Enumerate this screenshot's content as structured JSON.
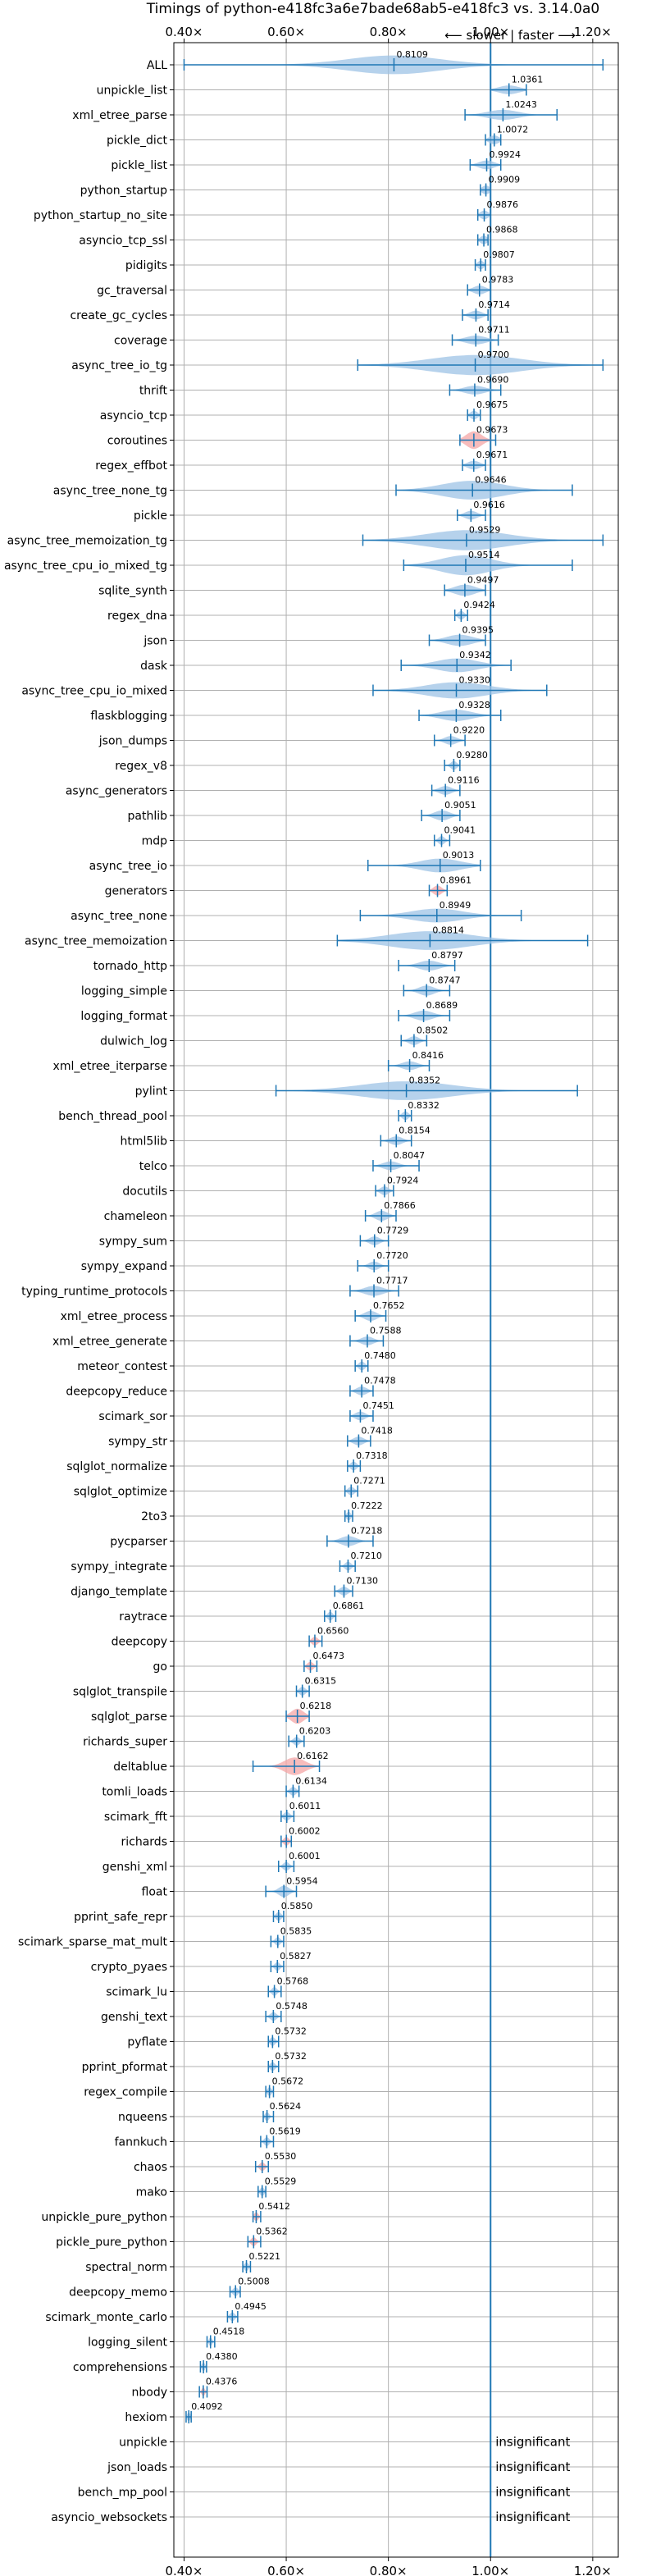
{
  "chart_data": {
    "type": "violin",
    "title": "Timings of python-e418fc3a6e7bade68ab5-e418fc3 vs. 3.14.0a0",
    "xlim": [
      0.38,
      1.25
    ],
    "x_ticks": [
      {
        "value": 0.4,
        "label": "0.40×"
      },
      {
        "value": 0.6,
        "label": "0.60×"
      },
      {
        "value": 0.8,
        "label": "0.80×"
      },
      {
        "value": 1.0,
        "label": "1.00×"
      },
      {
        "value": 1.2,
        "label": "1.20×"
      }
    ],
    "direction_label": "⟵ slower | faster ⟶",
    "reference_line": 1.0,
    "grid": true,
    "colors": {
      "violin_normal": "#9dc3e6",
      "violin_highlight": "#f4a6a6",
      "line": "#1f77b4",
      "grid": "#b0b0b0"
    },
    "benchmarks": [
      {
        "name": "ALL",
        "mean": 0.8109,
        "min": 0.4,
        "max": 1.22,
        "spread": 0.09,
        "width": 0.75
      },
      {
        "name": "unpickle_list",
        "mean": 1.0361,
        "min": 1.0,
        "max": 1.07,
        "spread": 0.02,
        "width": 0.35
      },
      {
        "name": "xml_etree_parse",
        "mean": 1.0243,
        "min": 0.95,
        "max": 1.13,
        "spread": 0.03,
        "width": 0.4
      },
      {
        "name": "pickle_dict",
        "mean": 1.0072,
        "min": 0.99,
        "max": 1.02,
        "spread": 0.01,
        "width": 0.35
      },
      {
        "name": "pickle_list",
        "mean": 0.9924,
        "min": 0.96,
        "max": 1.02,
        "spread": 0.015,
        "width": 0.35
      },
      {
        "name": "python_startup",
        "mean": 0.9909,
        "min": 0.98,
        "max": 1.0,
        "spread": 0.008,
        "width": 0.35
      },
      {
        "name": "python_startup_no_site",
        "mean": 0.9876,
        "min": 0.975,
        "max": 1.0,
        "spread": 0.008,
        "width": 0.35
      },
      {
        "name": "asyncio_tcp_ssl",
        "mean": 0.9868,
        "min": 0.975,
        "max": 0.995,
        "spread": 0.007,
        "width": 0.35
      },
      {
        "name": "pidigits",
        "mean": 0.9807,
        "min": 0.97,
        "max": 0.99,
        "spread": 0.006,
        "width": 0.35
      },
      {
        "name": "gc_traversal",
        "mean": 0.9783,
        "min": 0.955,
        "max": 1.0,
        "spread": 0.012,
        "width": 0.35
      },
      {
        "name": "create_gc_cycles",
        "mean": 0.9714,
        "min": 0.945,
        "max": 0.995,
        "spread": 0.012,
        "width": 0.35
      },
      {
        "name": "coverage",
        "mean": 0.9711,
        "min": 0.925,
        "max": 1.015,
        "spread": 0.02,
        "width": 0.35
      },
      {
        "name": "async_tree_io_tg",
        "mean": 0.97,
        "min": 0.74,
        "max": 1.22,
        "spread": 0.09,
        "width": 0.8
      },
      {
        "name": "thrift",
        "mean": 0.969,
        "min": 0.92,
        "max": 1.02,
        "spread": 0.02,
        "width": 0.35
      },
      {
        "name": "asyncio_tcp",
        "mean": 0.9675,
        "min": 0.955,
        "max": 0.98,
        "spread": 0.007,
        "width": 0.35
      },
      {
        "name": "coroutines",
        "mean": 0.9673,
        "min": 0.94,
        "max": 1.01,
        "spread": 0.015,
        "width": 0.7,
        "highlight": true
      },
      {
        "name": "regex_effbot",
        "mean": 0.9671,
        "min": 0.945,
        "max": 0.99,
        "spread": 0.012,
        "width": 0.35
      },
      {
        "name": "async_tree_none_tg",
        "mean": 0.9646,
        "min": 0.815,
        "max": 1.16,
        "spread": 0.06,
        "width": 0.75
      },
      {
        "name": "pickle",
        "mean": 0.9616,
        "min": 0.935,
        "max": 0.99,
        "spread": 0.012,
        "width": 0.35
      },
      {
        "name": "async_tree_memoization_tg",
        "mean": 0.9529,
        "min": 0.75,
        "max": 1.22,
        "spread": 0.08,
        "width": 0.8
      },
      {
        "name": "async_tree_cpu_io_mixed_tg",
        "mean": 0.9514,
        "min": 0.83,
        "max": 1.16,
        "spread": 0.05,
        "width": 0.8
      },
      {
        "name": "sqlite_synth",
        "mean": 0.9497,
        "min": 0.91,
        "max": 0.99,
        "spread": 0.02,
        "width": 0.45
      },
      {
        "name": "regex_dna",
        "mean": 0.9424,
        "min": 0.93,
        "max": 0.955,
        "spread": 0.006,
        "width": 0.35
      },
      {
        "name": "json",
        "mean": 0.9395,
        "min": 0.88,
        "max": 0.99,
        "spread": 0.025,
        "width": 0.45
      },
      {
        "name": "dask",
        "mean": 0.9342,
        "min": 0.825,
        "max": 1.04,
        "spread": 0.04,
        "width": 0.55
      },
      {
        "name": "async_tree_cpu_io_mixed",
        "mean": 0.933,
        "min": 0.77,
        "max": 1.11,
        "spread": 0.06,
        "width": 0.65
      },
      {
        "name": "flaskblogging",
        "mean": 0.9328,
        "min": 0.86,
        "max": 1.02,
        "spread": 0.03,
        "width": 0.45
      },
      {
        "name": "json_dumps",
        "mean": 0.922,
        "min": 0.89,
        "max": 0.95,
        "spread": 0.012,
        "width": 0.35
      },
      {
        "name": "regex_v8",
        "mean": 0.928,
        "min": 0.91,
        "max": 0.94,
        "spread": 0.006,
        "width": 0.35
      },
      {
        "name": "async_generators",
        "mean": 0.9116,
        "min": 0.885,
        "max": 0.94,
        "spread": 0.012,
        "width": 0.35
      },
      {
        "name": "pathlib",
        "mean": 0.9051,
        "min": 0.865,
        "max": 0.94,
        "spread": 0.015,
        "width": 0.4
      },
      {
        "name": "mdp",
        "mean": 0.9041,
        "min": 0.89,
        "max": 0.92,
        "spread": 0.006,
        "width": 0.35
      },
      {
        "name": "async_tree_io",
        "mean": 0.9013,
        "min": 0.76,
        "max": 0.98,
        "spread": 0.04,
        "width": 0.55
      },
      {
        "name": "generators",
        "mean": 0.8961,
        "min": 0.88,
        "max": 0.915,
        "spread": 0.008,
        "width": 0.4,
        "highlight": true
      },
      {
        "name": "async_tree_none",
        "mean": 0.8949,
        "min": 0.745,
        "max": 1.06,
        "spread": 0.05,
        "width": 0.55
      },
      {
        "name": "async_tree_memoization",
        "mean": 0.8814,
        "min": 0.7,
        "max": 1.19,
        "spread": 0.08,
        "width": 0.75
      },
      {
        "name": "tornado_http",
        "mean": 0.8797,
        "min": 0.82,
        "max": 0.93,
        "spread": 0.02,
        "width": 0.4
      },
      {
        "name": "logging_simple",
        "mean": 0.8747,
        "min": 0.83,
        "max": 0.92,
        "spread": 0.015,
        "width": 0.4
      },
      {
        "name": "logging_format",
        "mean": 0.8689,
        "min": 0.82,
        "max": 0.92,
        "spread": 0.018,
        "width": 0.4
      },
      {
        "name": "dulwich_log",
        "mean": 0.8502,
        "min": 0.825,
        "max": 0.875,
        "spread": 0.01,
        "width": 0.35
      },
      {
        "name": "xml_etree_iterparse",
        "mean": 0.8416,
        "min": 0.8,
        "max": 0.88,
        "spread": 0.015,
        "width": 0.35
      },
      {
        "name": "pylint",
        "mean": 0.8352,
        "min": 0.58,
        "max": 1.17,
        "spread": 0.09,
        "width": 0.75
      },
      {
        "name": "bench_thread_pool",
        "mean": 0.8332,
        "min": 0.82,
        "max": 0.845,
        "spread": 0.006,
        "width": 0.35
      },
      {
        "name": "html5lib",
        "mean": 0.8154,
        "min": 0.785,
        "max": 0.845,
        "spread": 0.012,
        "width": 0.35
      },
      {
        "name": "telco",
        "mean": 0.8047,
        "min": 0.77,
        "max": 0.86,
        "spread": 0.015,
        "width": 0.35
      },
      {
        "name": "docutils",
        "mean": 0.7924,
        "min": 0.775,
        "max": 0.81,
        "spread": 0.008,
        "width": 0.35
      },
      {
        "name": "chameleon",
        "mean": 0.7866,
        "min": 0.755,
        "max": 0.815,
        "spread": 0.012,
        "width": 0.4
      },
      {
        "name": "sympy_sum",
        "mean": 0.7729,
        "min": 0.745,
        "max": 0.8,
        "spread": 0.01,
        "width": 0.35
      },
      {
        "name": "sympy_expand",
        "mean": 0.772,
        "min": 0.74,
        "max": 0.8,
        "spread": 0.01,
        "width": 0.35
      },
      {
        "name": "typing_runtime_protocols",
        "mean": 0.7717,
        "min": 0.725,
        "max": 0.82,
        "spread": 0.018,
        "width": 0.4
      },
      {
        "name": "xml_etree_process",
        "mean": 0.7652,
        "min": 0.735,
        "max": 0.795,
        "spread": 0.012,
        "width": 0.4
      },
      {
        "name": "xml_etree_generate",
        "mean": 0.7588,
        "min": 0.725,
        "max": 0.79,
        "spread": 0.012,
        "width": 0.35
      },
      {
        "name": "meteor_contest",
        "mean": 0.748,
        "min": 0.735,
        "max": 0.76,
        "spread": 0.006,
        "width": 0.35
      },
      {
        "name": "deepcopy_reduce",
        "mean": 0.7478,
        "min": 0.725,
        "max": 0.77,
        "spread": 0.01,
        "width": 0.35
      },
      {
        "name": "scimark_sor",
        "mean": 0.7451,
        "min": 0.725,
        "max": 0.77,
        "spread": 0.01,
        "width": 0.35
      },
      {
        "name": "sympy_str",
        "mean": 0.7418,
        "min": 0.72,
        "max": 0.765,
        "spread": 0.01,
        "width": 0.35
      },
      {
        "name": "sqlglot_normalize",
        "mean": 0.7318,
        "min": 0.72,
        "max": 0.745,
        "spread": 0.006,
        "width": 0.35
      },
      {
        "name": "sqlglot_optimize",
        "mean": 0.7271,
        "min": 0.715,
        "max": 0.74,
        "spread": 0.006,
        "width": 0.35
      },
      {
        "name": "2to3",
        "mean": 0.7222,
        "min": 0.715,
        "max": 0.73,
        "spread": 0.004,
        "width": 0.35
      },
      {
        "name": "pycparser",
        "mean": 0.7218,
        "min": 0.68,
        "max": 0.77,
        "spread": 0.015,
        "width": 0.4
      },
      {
        "name": "sympy_integrate",
        "mean": 0.721,
        "min": 0.705,
        "max": 0.735,
        "spread": 0.006,
        "width": 0.35
      },
      {
        "name": "django_template",
        "mean": 0.713,
        "min": 0.695,
        "max": 0.73,
        "spread": 0.008,
        "width": 0.35
      },
      {
        "name": "raytrace",
        "mean": 0.6861,
        "min": 0.675,
        "max": 0.697,
        "spread": 0.005,
        "width": 0.35
      },
      {
        "name": "deepcopy",
        "mean": 0.656,
        "min": 0.645,
        "max": 0.67,
        "spread": 0.006,
        "width": 0.35,
        "highlight": true
      },
      {
        "name": "go",
        "mean": 0.6473,
        "min": 0.635,
        "max": 0.66,
        "spread": 0.006,
        "width": 0.35,
        "highlight": true
      },
      {
        "name": "sqlglot_transpile",
        "mean": 0.6315,
        "min": 0.62,
        "max": 0.645,
        "spread": 0.006,
        "width": 0.35
      },
      {
        "name": "sqlglot_parse",
        "mean": 0.6218,
        "min": 0.6,
        "max": 0.645,
        "spread": 0.012,
        "width": 0.6,
        "highlight": true
      },
      {
        "name": "richards_super",
        "mean": 0.6203,
        "min": 0.605,
        "max": 0.635,
        "spread": 0.006,
        "width": 0.35
      },
      {
        "name": "deltablue",
        "mean": 0.6162,
        "min": 0.535,
        "max": 0.665,
        "spread": 0.02,
        "width": 0.7,
        "highlight": true
      },
      {
        "name": "tomli_loads",
        "mean": 0.6134,
        "min": 0.6,
        "max": 0.625,
        "spread": 0.006,
        "width": 0.35
      },
      {
        "name": "scimark_fft",
        "mean": 0.6011,
        "min": 0.59,
        "max": 0.615,
        "spread": 0.006,
        "width": 0.35
      },
      {
        "name": "richards",
        "mean": 0.6002,
        "min": 0.59,
        "max": 0.61,
        "spread": 0.005,
        "width": 0.35,
        "highlight": true
      },
      {
        "name": "genshi_xml",
        "mean": 0.6001,
        "min": 0.585,
        "max": 0.615,
        "spread": 0.006,
        "width": 0.35
      },
      {
        "name": "float",
        "mean": 0.5954,
        "min": 0.56,
        "max": 0.62,
        "spread": 0.01,
        "width": 0.45
      },
      {
        "name": "pprint_safe_repr",
        "mean": 0.585,
        "min": 0.575,
        "max": 0.595,
        "spread": 0.005,
        "width": 0.35
      },
      {
        "name": "scimark_sparse_mat_mult",
        "mean": 0.5835,
        "min": 0.57,
        "max": 0.595,
        "spread": 0.005,
        "width": 0.35
      },
      {
        "name": "crypto_pyaes",
        "mean": 0.5827,
        "min": 0.57,
        "max": 0.595,
        "spread": 0.005,
        "width": 0.35
      },
      {
        "name": "scimark_lu",
        "mean": 0.5768,
        "min": 0.565,
        "max": 0.59,
        "spread": 0.005,
        "width": 0.35
      },
      {
        "name": "genshi_text",
        "mean": 0.5748,
        "min": 0.56,
        "max": 0.59,
        "spread": 0.006,
        "width": 0.35
      },
      {
        "name": "pyflate",
        "mean": 0.5732,
        "min": 0.565,
        "max": 0.585,
        "spread": 0.005,
        "width": 0.35
      },
      {
        "name": "pprint_pformat",
        "mean": 0.5732,
        "min": 0.565,
        "max": 0.585,
        "spread": 0.005,
        "width": 0.35
      },
      {
        "name": "regex_compile",
        "mean": 0.5672,
        "min": 0.56,
        "max": 0.575,
        "spread": 0.004,
        "width": 0.35
      },
      {
        "name": "nqueens",
        "mean": 0.5624,
        "min": 0.555,
        "max": 0.575,
        "spread": 0.004,
        "width": 0.35
      },
      {
        "name": "fannkuch",
        "mean": 0.5619,
        "min": 0.55,
        "max": 0.575,
        "spread": 0.005,
        "width": 0.35
      },
      {
        "name": "chaos",
        "mean": 0.553,
        "min": 0.54,
        "max": 0.565,
        "spread": 0.005,
        "width": 0.35,
        "highlight": true
      },
      {
        "name": "mako",
        "mean": 0.5529,
        "min": 0.545,
        "max": 0.56,
        "spread": 0.004,
        "width": 0.35
      },
      {
        "name": "unpickle_pure_python",
        "mean": 0.5412,
        "min": 0.535,
        "max": 0.55,
        "spread": 0.004,
        "width": 0.35,
        "highlight": true
      },
      {
        "name": "pickle_pure_python",
        "mean": 0.5362,
        "min": 0.525,
        "max": 0.55,
        "spread": 0.005,
        "width": 0.35,
        "highlight": true
      },
      {
        "name": "spectral_norm",
        "mean": 0.5221,
        "min": 0.515,
        "max": 0.53,
        "spread": 0.004,
        "width": 0.35
      },
      {
        "name": "deepcopy_memo",
        "mean": 0.5008,
        "min": 0.49,
        "max": 0.51,
        "spread": 0.005,
        "width": 0.35
      },
      {
        "name": "scimark_monte_carlo",
        "mean": 0.4945,
        "min": 0.485,
        "max": 0.505,
        "spread": 0.005,
        "width": 0.35
      },
      {
        "name": "logging_silent",
        "mean": 0.4518,
        "min": 0.445,
        "max": 0.46,
        "spread": 0.003,
        "width": 0.35
      },
      {
        "name": "comprehensions",
        "mean": 0.438,
        "min": 0.432,
        "max": 0.444,
        "spread": 0.003,
        "width": 0.35
      },
      {
        "name": "nbody",
        "mean": 0.4376,
        "min": 0.43,
        "max": 0.445,
        "spread": 0.003,
        "width": 0.35,
        "highlight": true
      },
      {
        "name": "hexiom",
        "mean": 0.4092,
        "min": 0.404,
        "max": 0.414,
        "spread": 0.003,
        "width": 0.35
      },
      {
        "name": "unpickle",
        "insignificant": true,
        "note": "insignificant"
      },
      {
        "name": "json_loads",
        "insignificant": true,
        "note": "insignificant"
      },
      {
        "name": "bench_mp_pool",
        "insignificant": true,
        "note": "insignificant"
      },
      {
        "name": "asyncio_websockets",
        "insignificant": true,
        "note": "insignificant"
      }
    ]
  }
}
